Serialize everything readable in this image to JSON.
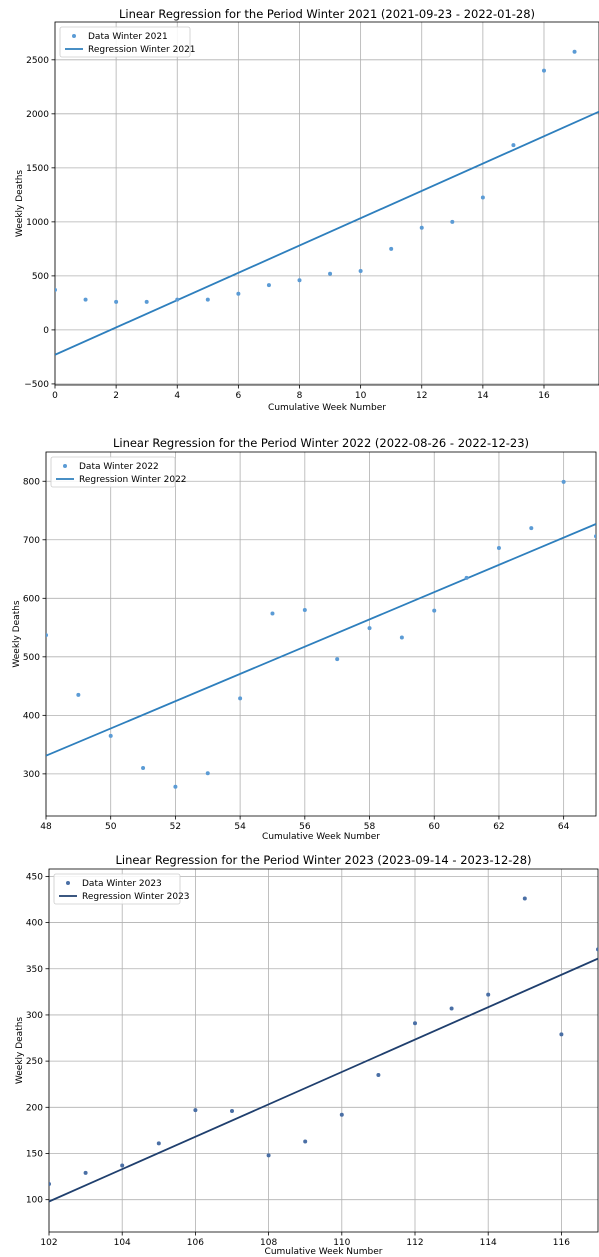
{
  "chart_data": [
    {
      "type": "scatter",
      "title": "Linear Regression for the Period Winter 2021 (2021-09-23 - 2022-01-28)",
      "xlabel": "Cumulative Week Number",
      "ylabel": "Weekly Deaths",
      "xlim": [
        0,
        17.8
      ],
      "ylim": [
        -510,
        2850
      ],
      "xticks": [
        0,
        2,
        4,
        6,
        8,
        10,
        12,
        14,
        16
      ],
      "yticks": [
        -500,
        0,
        500,
        1000,
        1500,
        2000,
        2500
      ],
      "grid": true,
      "legend_position": "top-left",
      "series": [
        {
          "name": "Data Winter 2021",
          "kind": "scatter",
          "color": "#5b9bd5",
          "x": [
            0,
            1,
            2,
            3,
            4,
            5,
            6,
            7,
            8,
            9,
            10,
            11,
            12,
            13,
            14,
            15,
            16,
            17
          ],
          "y": [
            370,
            280,
            260,
            260,
            280,
            280,
            335,
            415,
            460,
            520,
            545,
            750,
            945,
            1000,
            1225,
            1710,
            2400,
            2575
          ]
        },
        {
          "name": "Regression Winter 2021",
          "kind": "line",
          "color": "#2e7fbd",
          "x": [
            0,
            17.8
          ],
          "y": [
            -230,
            2020
          ]
        }
      ]
    },
    {
      "type": "scatter",
      "title": "Linear Regression for the Period Winter 2022 (2022-08-26 - 2022-12-23)",
      "xlabel": "Cumulative Week Number",
      "ylabel": "Weekly Deaths",
      "xlim": [
        48,
        65
      ],
      "ylim": [
        228,
        850
      ],
      "xticks": [
        48,
        50,
        52,
        54,
        56,
        58,
        60,
        62,
        64
      ],
      "yticks": [
        300,
        400,
        500,
        600,
        700,
        800
      ],
      "grid": true,
      "legend_position": "top-left",
      "series": [
        {
          "name": "Data Winter 2022",
          "kind": "scatter",
          "color": "#5b9bd5",
          "x": [
            48,
            49,
            50,
            51,
            52,
            53,
            54,
            55,
            56,
            57,
            58,
            59,
            60,
            61,
            62,
            63,
            64,
            65
          ],
          "y": [
            537,
            435,
            365,
            310,
            278,
            301,
            429,
            574,
            580,
            496,
            549,
            533,
            579,
            635,
            686,
            720,
            799,
            706
          ]
        },
        {
          "name": "Regression Winter 2022",
          "kind": "line",
          "color": "#2e7fbd",
          "x": [
            48,
            65
          ],
          "y": [
            331,
            727
          ]
        }
      ]
    },
    {
      "type": "scatter",
      "title": "Linear Regression for the Period Winter 2023 (2023-09-14 - 2023-12-28)",
      "xlabel": "Cumulative Week Number",
      "ylabel": "Weekly Deaths",
      "xlim": [
        102,
        117
      ],
      "ylim": [
        65,
        458
      ],
      "xticks": [
        102,
        104,
        106,
        108,
        110,
        112,
        114,
        116
      ],
      "yticks": [
        100,
        150,
        200,
        250,
        300,
        350,
        400,
        450
      ],
      "grid": true,
      "legend_position": "top-left",
      "series": [
        {
          "name": "Data Winter 2023",
          "kind": "scatter",
          "color": "#4a6fa5",
          "x": [
            102,
            103,
            104,
            105,
            106,
            107,
            108,
            109,
            110,
            111,
            112,
            113,
            114,
            115,
            116,
            117
          ],
          "y": [
            117,
            129,
            137,
            161,
            197,
            196,
            148,
            163,
            192,
            235,
            291,
            307,
            322,
            426,
            279,
            371
          ]
        },
        {
          "name": "Regression Winter 2023",
          "kind": "line",
          "color": "#1f3f6e",
          "x": [
            102,
            117
          ],
          "y": [
            98,
            361
          ]
        }
      ]
    }
  ]
}
